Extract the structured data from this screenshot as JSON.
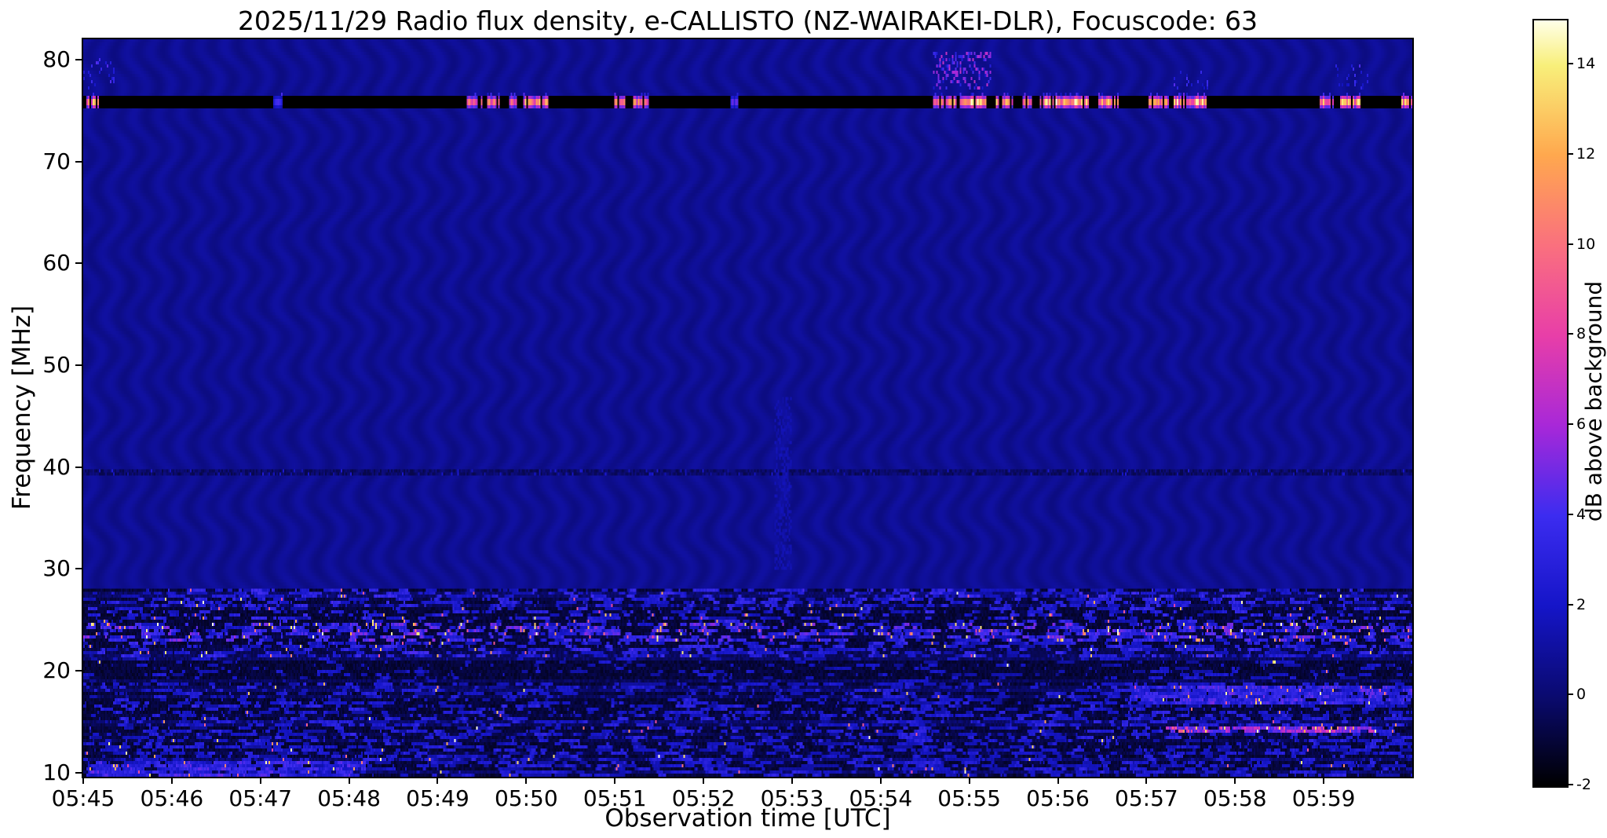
{
  "chart_data": {
    "type": "heatmap",
    "title": "2025/11/29  Radio flux density, e-CALLISTO (NZ-WAIRAKEI-DLR), Focuscode: 63",
    "xlabel": "Observation time [UTC]",
    "ylabel": "Frequency [MHz]",
    "colorbar_label": "dB above background",
    "grid": false,
    "legend": "none",
    "time_start_utc": "05:45",
    "time_end_utc": "06:00",
    "x_minutes_span": 15,
    "x_ticks": [
      "05:45",
      "05:46",
      "05:47",
      "05:48",
      "05:49",
      "05:50",
      "05:51",
      "05:52",
      "05:53",
      "05:54",
      "05:55",
      "05:56",
      "05:57",
      "05:58",
      "05:59"
    ],
    "y_ticks": [
      80,
      70,
      60,
      50,
      40,
      30,
      20,
      10
    ],
    "freq_range": [
      9.6,
      82.0
    ],
    "value_range": [
      -2,
      15
    ],
    "colorbar_ticks": [
      14,
      12,
      10,
      8,
      6,
      4,
      2,
      0,
      -2
    ],
    "colormap": "gnuplot2-like",
    "colormap_stops": [
      [
        0.0,
        "#000000"
      ],
      [
        0.118,
        "#0a0a70"
      ],
      [
        0.235,
        "#1515c8"
      ],
      [
        0.353,
        "#3c2cf0"
      ],
      [
        0.471,
        "#a828d8"
      ],
      [
        0.588,
        "#e83ea8"
      ],
      [
        0.706,
        "#fa707e"
      ],
      [
        0.824,
        "#ffa84e"
      ],
      [
        0.941,
        "#f8ef7a"
      ],
      [
        1.0,
        "#ffffe8"
      ]
    ],
    "background": {
      "value": 0.75,
      "ripple_amplitude": 0.27
    },
    "features": {
      "rfi_band": {
        "freq": [
          75.3,
          76.6
        ],
        "value": -2,
        "bursts": [
          [
            0.03,
            0.2,
            13
          ],
          [
            2.15,
            2.25,
            4
          ],
          [
            4.3,
            4.5,
            12
          ],
          [
            4.55,
            4.7,
            13
          ],
          [
            4.78,
            4.9,
            12
          ],
          [
            4.95,
            5.25,
            13
          ],
          [
            6.0,
            6.15,
            13
          ],
          [
            6.2,
            6.38,
            12
          ],
          [
            7.3,
            7.4,
            5
          ],
          [
            9.6,
            9.85,
            14
          ],
          [
            9.9,
            10.2,
            15
          ],
          [
            10.3,
            10.5,
            13
          ],
          [
            10.6,
            10.72,
            12
          ],
          [
            10.8,
            11.35,
            15
          ],
          [
            11.45,
            11.68,
            13
          ],
          [
            12.0,
            12.25,
            12
          ],
          [
            12.3,
            12.68,
            14
          ],
          [
            13.95,
            14.12,
            13
          ],
          [
            14.18,
            14.42,
            14
          ],
          [
            14.85,
            15.0,
            13
          ]
        ]
      },
      "quiet_line": {
        "freq": [
          39.2,
          39.8
        ]
      },
      "speckle_patches": [
        {
          "t": [
            0.0,
            0.35
          ],
          "freq": [
            77,
            80
          ],
          "p": 0.12,
          "base": 1.5,
          "amp": 3
        },
        {
          "t": [
            9.6,
            10.25
          ],
          "freq": [
            77,
            80.8
          ],
          "p": 0.3,
          "base": 2,
          "amp": 5
        },
        {
          "t": [
            12.3,
            12.7
          ],
          "freq": [
            77,
            79
          ],
          "p": 0.12,
          "base": 1.5,
          "amp": 3
        },
        {
          "t": [
            14.1,
            14.5
          ],
          "freq": [
            77,
            79.5
          ],
          "p": 0.15,
          "base": 1.5,
          "amp": 3
        },
        {
          "t": [
            7.8,
            8.0
          ],
          "freq": [
            30,
            47
          ],
          "p": 0.5,
          "base": 1.1,
          "amp": 0.6
        }
      ],
      "noise_floor": {
        "freq_below": 28.2,
        "value": -1.4
      },
      "noise_bands": [
        {
          "freq": [
            26.3,
            28.0
          ],
          "t": [
            0,
            15
          ],
          "density": 0.45,
          "base": 1.2,
          "amp": 2.5,
          "bright_p": 0.012
        },
        {
          "freq": [
            24.6,
            26.3
          ],
          "t": [
            0,
            15
          ],
          "density": 0.32,
          "base": 1.0,
          "amp": 2.5,
          "bright_p": 0.035
        },
        {
          "freq": [
            22.8,
            24.6
          ],
          "t": [
            0,
            15
          ],
          "density": 0.55,
          "base": 1.5,
          "amp": 3.5,
          "bright_p": 0.06
        },
        {
          "freq": [
            21.2,
            22.8
          ],
          "t": [
            0,
            15
          ],
          "density": 0.45,
          "base": 1.2,
          "amp": 2.5,
          "bright_p": 0.02
        },
        {
          "freq": [
            18.8,
            21.2
          ],
          "t": [
            0,
            15
          ],
          "density": 0.16,
          "base": 0.8,
          "amp": 1.6,
          "bright_p": 0.004
        },
        {
          "freq": [
            16.6,
            18.8
          ],
          "t": [
            0,
            15
          ],
          "density": 0.38,
          "base": 1.0,
          "amp": 2.0,
          "bright_p": 0.008
        },
        {
          "freq": [
            16.7,
            18.5
          ],
          "t": [
            11.8,
            15
          ],
          "density": 0.85,
          "base": 2.0,
          "amp": 2.5,
          "bright_p": 0.02
        },
        {
          "freq": [
            12.6,
            16.6
          ],
          "t": [
            0,
            15
          ],
          "density": 0.4,
          "base": 1.0,
          "amp": 2.2,
          "bright_p": 0.01
        },
        {
          "freq": [
            13.8,
            14.6
          ],
          "t": [
            12.2,
            14.6
          ],
          "density": 0.9,
          "base": 4.0,
          "amp": 4.0,
          "bright_p": 0.08
        },
        {
          "freq": [
            9.6,
            12.6
          ],
          "t": [
            0,
            15
          ],
          "density": 0.45,
          "base": 1.0,
          "amp": 2.0,
          "bright_p": 0.008
        },
        {
          "freq": [
            9.6,
            11.2
          ],
          "t": [
            0,
            3.2
          ],
          "density": 0.8,
          "base": 1.8,
          "amp": 2.5,
          "bright_p": 0.02
        }
      ]
    }
  }
}
